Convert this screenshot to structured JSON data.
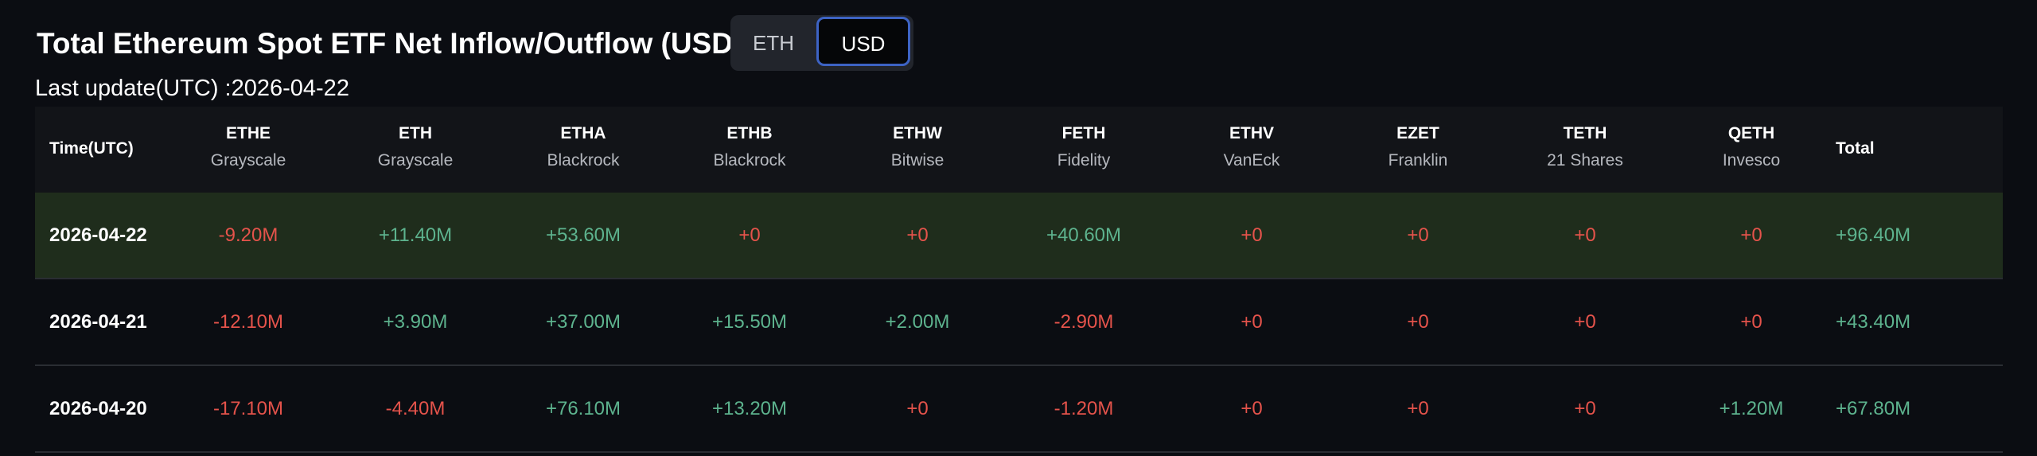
{
  "header": {
    "title": "Total Ethereum Spot ETF Net Inflow/Outflow (USD)",
    "toggle": [
      "ETH",
      "USD"
    ],
    "last_update": "Last update(UTC) :2026-04-22"
  },
  "table": {
    "columns": [
      {
        "ticker": "Time(UTC)"
      },
      {
        "ticker": "ETHE",
        "issuer": "Grayscale"
      },
      {
        "ticker": "ETH",
        "issuer": "Grayscale"
      },
      {
        "ticker": "ETHA",
        "issuer": "Blackrock"
      },
      {
        "ticker": "ETHB",
        "issuer": "Blackrock"
      },
      {
        "ticker": "ETHW",
        "issuer": "Bitwise"
      },
      {
        "ticker": "FETH",
        "issuer": "Fidelity"
      },
      {
        "ticker": "ETHV",
        "issuer": "VanEck"
      },
      {
        "ticker": "EZET",
        "issuer": "Franklin"
      },
      {
        "ticker": "TETH",
        "issuer": "21 Shares"
      },
      {
        "ticker": "QETH",
        "issuer": "Invesco"
      },
      {
        "ticker": "Total"
      }
    ],
    "rows": [
      [
        "2026-04-22",
        "-9.20M",
        "+11.40M",
        "+53.60M",
        "+0",
        "+0",
        "+40.60M",
        "+0",
        "+0",
        "+0",
        "+0",
        "+96.40M"
      ],
      [
        "2026-04-21",
        "-12.10M",
        "+3.90M",
        "+37.00M",
        "+15.50M",
        "+2.00M",
        "-2.90M",
        "+0",
        "+0",
        "+0",
        "+0",
        "+43.40M"
      ],
      [
        "2026-04-20",
        "-17.10M",
        "-4.40M",
        "+76.10M",
        "+13.20M",
        "+0",
        "-1.20M",
        "+0",
        "+0",
        "+0",
        "+1.20M",
        "+67.80M"
      ]
    ]
  }
}
